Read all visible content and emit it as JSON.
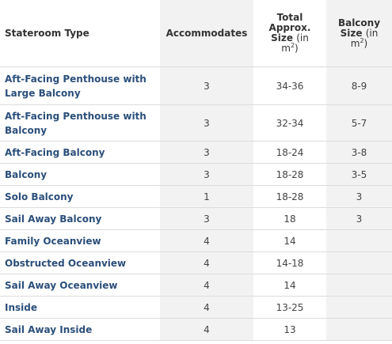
{
  "header": {
    "stateroom_type": "Stateroom Type",
    "accommodates": "Accommodates",
    "total_size_line1": "Total",
    "total_size_line2": "Approx.",
    "total_size_line3": "Size",
    "total_size_unit_a": "(in",
    "total_size_unit_b": "m",
    "total_size_unit_sup": "2",
    "total_size_unit_c": ")",
    "balcony_line1": "Balcony",
    "balcony_line2": "Size",
    "balcony_unit_a": "(in",
    "balcony_unit_b": "m",
    "balcony_unit_sup": "2",
    "balcony_unit_c": ")"
  },
  "rows": [
    {
      "type": "Aft-Facing Penthouse with Large Balcony",
      "accommodates": "3",
      "size": "34-36",
      "balcony": "8-9"
    },
    {
      "type": "Aft-Facing Penthouse with Balcony",
      "accommodates": "3",
      "size": "32-34",
      "balcony": "5-7"
    },
    {
      "type": "Aft-Facing Balcony",
      "accommodates": "3",
      "size": "18-24",
      "balcony": "3-8"
    },
    {
      "type": "Balcony",
      "accommodates": "3",
      "size": "18-28",
      "balcony": "3-5"
    },
    {
      "type": "Solo Balcony",
      "accommodates": "1",
      "size": "18-28",
      "balcony": "3"
    },
    {
      "type": "Sail Away Balcony",
      "accommodates": "3",
      "size": "18",
      "balcony": "3"
    },
    {
      "type": "Family Oceanview",
      "accommodates": "4",
      "size": "14",
      "balcony": ""
    },
    {
      "type": "Obstructed Oceanview",
      "accommodates": "4",
      "size": "14-18",
      "balcony": ""
    },
    {
      "type": "Sail Away Oceanview",
      "accommodates": "4",
      "size": "14",
      "balcony": ""
    },
    {
      "type": "Inside",
      "accommodates": "4",
      "size": "13-25",
      "balcony": ""
    },
    {
      "type": "Sail Away Inside",
      "accommodates": "4",
      "size": "13",
      "balcony": ""
    }
  ]
}
